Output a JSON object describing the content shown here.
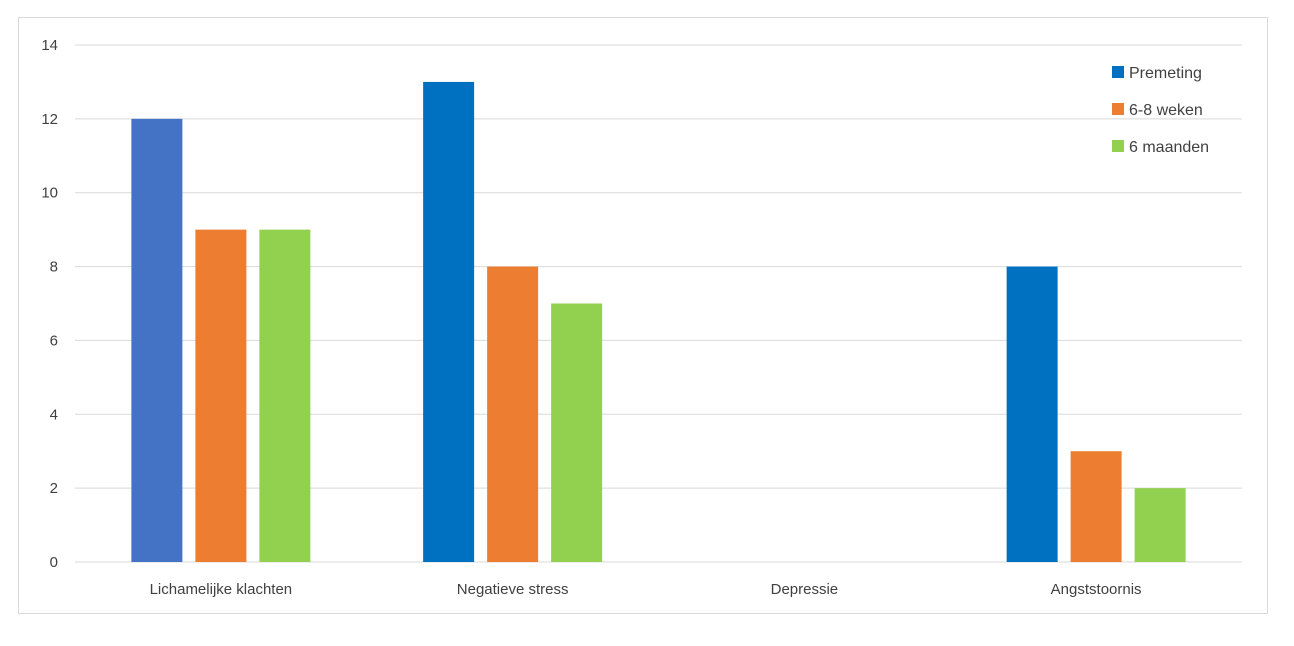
{
  "chart_data": {
    "type": "bar",
    "title": "",
    "xlabel": "",
    "ylabel": "",
    "ylim": [
      0,
      14
    ],
    "ytick_step": 2,
    "grid": true,
    "legend_position": "top-right",
    "categories": [
      "Lichamelijke klachten",
      "Negatieve stress",
      "Depressie",
      "Angststoornis"
    ],
    "series": [
      {
        "name": "Premeting",
        "color": "#0070c0",
        "values": [
          12,
          13,
          0,
          8
        ],
        "point_colors": [
          "#4472c4",
          null,
          null,
          null
        ]
      },
      {
        "name": "6-8 weken",
        "color": "#ed7d31",
        "values": [
          9,
          8,
          0,
          3
        ]
      },
      {
        "name": "6 maanden",
        "color": "#92d050",
        "values": [
          9,
          7,
          0,
          2
        ]
      }
    ]
  }
}
